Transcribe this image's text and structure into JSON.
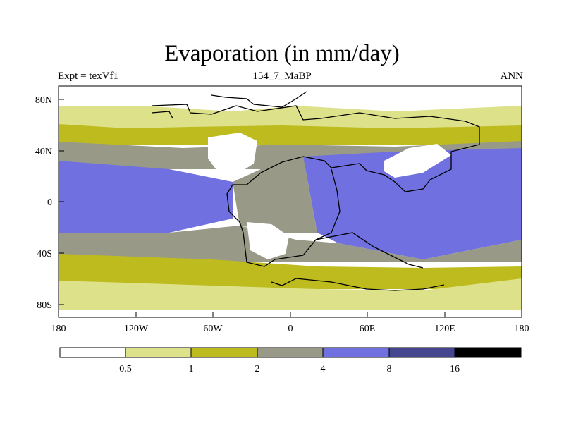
{
  "title": "Evaporation (in mm/day)",
  "left_label": "Expt = texVf1",
  "center_label": "154_7_MaBP",
  "right_label": "ANN",
  "lat_ticks": [
    "80N",
    "40N",
    "0",
    "40S",
    "80S"
  ],
  "lon_ticks": [
    "180",
    "120W",
    "60W",
    "0",
    "60E",
    "120E",
    "180"
  ],
  "colorbar": {
    "labels": [
      "0.5",
      "1",
      "2",
      "4",
      "8",
      "16"
    ],
    "colors": [
      "#ffffff",
      "#dde28a",
      "#bdbb1e",
      "#999987",
      "#7070e0",
      "#454590",
      "#000000"
    ]
  }
}
